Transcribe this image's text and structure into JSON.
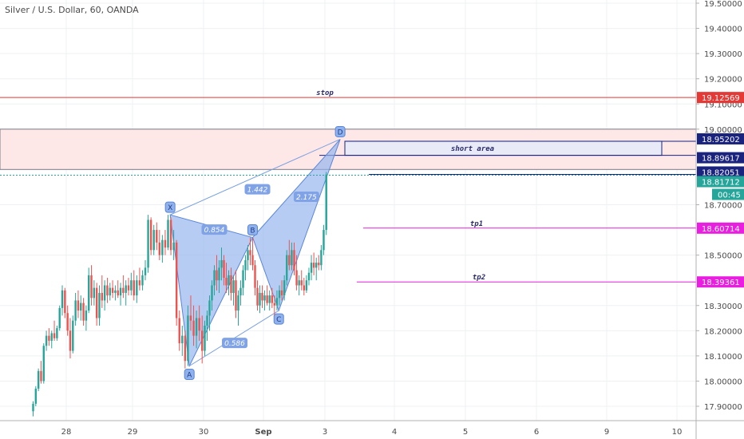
{
  "header": {
    "title": "Silver / U.S. Dollar, 60, OANDA"
  },
  "chart_data": {
    "type": "candlestick",
    "ylim": [
      17.85,
      19.5
    ],
    "y_ticks": [
      {
        "v": 19.5,
        "label": "19.50000"
      },
      {
        "v": 19.4,
        "label": "19.40000"
      },
      {
        "v": 19.3,
        "label": "19.30000"
      },
      {
        "v": 19.2,
        "label": "19.20000"
      },
      {
        "v": 19.1,
        "label": "19.10000"
      },
      {
        "v": 19.0,
        "label": "19.00000"
      },
      {
        "v": 18.7,
        "label": "18.70000"
      },
      {
        "v": 18.5,
        "label": "18.50000"
      },
      {
        "v": 18.3,
        "label": "18.30000"
      },
      {
        "v": 18.2,
        "label": "18.20000"
      },
      {
        "v": 18.1,
        "label": "18.10000"
      },
      {
        "v": 18.0,
        "label": "18.00000"
      },
      {
        "v": 17.9,
        "label": "17.90000"
      }
    ],
    "x_ticks": [
      {
        "d": 0,
        "label": "28"
      },
      {
        "d": 1,
        "label": "29"
      },
      {
        "d": 2,
        "label": "30"
      },
      {
        "d": 3,
        "label": "Sep"
      },
      {
        "d": 4,
        "label": "3"
      },
      {
        "d": 5,
        "label": "4"
      },
      {
        "d": 6,
        "label": "5"
      },
      {
        "d": 7,
        "label": "6"
      },
      {
        "d": 8,
        "label": "9"
      },
      {
        "d": 9,
        "label": "10"
      }
    ],
    "levels": [
      {
        "name": "stop",
        "value": 19.12569,
        "label": "19.12569",
        "color": "#e53935",
        "text": "stop"
      },
      {
        "name": "short-top",
        "value": 18.95202,
        "label": "18.95202",
        "color": "#1a237e"
      },
      {
        "name": "short-bottom",
        "value": 18.89617,
        "label": "18.89617",
        "color": "#1a237e"
      },
      {
        "name": "line-82051",
        "value": 18.82051,
        "label": "18.82051",
        "color": "#1a237e"
      },
      {
        "name": "current",
        "value": 18.81712,
        "label": "18.81712",
        "color": "#26a69a"
      },
      {
        "name": "tp1",
        "value": 18.60714,
        "label": "18.60714",
        "color": "#e91ee0",
        "text": "tp1"
      },
      {
        "name": "tp2",
        "value": 18.39361,
        "label": "18.39361",
        "color": "#e91ee0",
        "text": "tp2"
      }
    ],
    "countdown": "00:45",
    "short_area_label": "short area",
    "zone": {
      "top": 19.0,
      "bottom": 18.84
    },
    "pattern": {
      "points": [
        {
          "label": "X",
          "d": 1.53,
          "v": 18.66
        },
        {
          "label": "A",
          "d": 1.8,
          "v": 18.06
        },
        {
          "label": "B",
          "d": 2.82,
          "v": 18.57
        },
        {
          "label": "C",
          "d": 3.25,
          "v": 18.28
        },
        {
          "label": "D",
          "d": 4.22,
          "v": 18.96
        }
      ],
      "ratios": [
        {
          "label": "0.854",
          "d": 2.18,
          "v": 18.6
        },
        {
          "label": "0.586",
          "d": 2.52,
          "v": 18.15
        },
        {
          "label": "1.442",
          "d": 2.9,
          "v": 18.76
        },
        {
          "label": "2.175",
          "d": 3.7,
          "v": 18.73
        }
      ]
    },
    "candles": [
      {
        "d": -0.5,
        "o": 17.88,
        "h": 17.92,
        "l": 17.86,
        "c": 17.91
      },
      {
        "d": -0.46,
        "o": 17.91,
        "h": 17.98,
        "l": 17.9,
        "c": 17.97
      },
      {
        "d": -0.42,
        "o": 17.97,
        "h": 18.05,
        "l": 17.96,
        "c": 18.04
      },
      {
        "d": -0.38,
        "o": 18.04,
        "h": 18.08,
        "l": 17.99,
        "c": 18.0
      },
      {
        "d": -0.34,
        "o": 18.0,
        "h": 18.15,
        "l": 17.99,
        "c": 18.14
      },
      {
        "d": -0.3,
        "o": 18.14,
        "h": 18.2,
        "l": 18.12,
        "c": 18.18
      },
      {
        "d": -0.26,
        "o": 18.18,
        "h": 18.21,
        "l": 18.14,
        "c": 18.16
      },
      {
        "d": -0.22,
        "o": 18.16,
        "h": 18.2,
        "l": 18.13,
        "c": 18.19
      },
      {
        "d": -0.18,
        "o": 18.19,
        "h": 18.24,
        "l": 18.16,
        "c": 18.17
      },
      {
        "d": -0.14,
        "o": 18.17,
        "h": 18.22,
        "l": 18.16,
        "c": 18.21
      },
      {
        "d": -0.1,
        "o": 18.21,
        "h": 18.3,
        "l": 18.2,
        "c": 18.29
      },
      {
        "d": -0.06,
        "o": 18.29,
        "h": 18.38,
        "l": 18.26,
        "c": 18.36
      },
      {
        "d": -0.02,
        "o": 18.36,
        "h": 18.37,
        "l": 18.25,
        "c": 18.27
      },
      {
        "d": 0.02,
        "o": 18.27,
        "h": 18.3,
        "l": 18.18,
        "c": 18.2
      },
      {
        "d": 0.06,
        "o": 18.2,
        "h": 18.25,
        "l": 18.09,
        "c": 18.12
      },
      {
        "d": 0.1,
        "o": 18.12,
        "h": 18.26,
        "l": 18.11,
        "c": 18.24
      },
      {
        "d": 0.14,
        "o": 18.24,
        "h": 18.35,
        "l": 18.22,
        "c": 18.32
      },
      {
        "d": 0.18,
        "o": 18.32,
        "h": 18.36,
        "l": 18.25,
        "c": 18.28
      },
      {
        "d": 0.22,
        "o": 18.28,
        "h": 18.34,
        "l": 18.24,
        "c": 18.31
      },
      {
        "d": 0.26,
        "o": 18.31,
        "h": 18.33,
        "l": 18.22,
        "c": 18.24
      },
      {
        "d": 0.3,
        "o": 18.24,
        "h": 18.3,
        "l": 18.2,
        "c": 18.28
      },
      {
        "d": 0.34,
        "o": 18.28,
        "h": 18.45,
        "l": 18.27,
        "c": 18.42
      },
      {
        "d": 0.38,
        "o": 18.42,
        "h": 18.46,
        "l": 18.3,
        "c": 18.33
      },
      {
        "d": 0.42,
        "o": 18.33,
        "h": 18.4,
        "l": 18.3,
        "c": 18.37
      },
      {
        "d": 0.46,
        "o": 18.37,
        "h": 18.39,
        "l": 18.22,
        "c": 18.25
      },
      {
        "d": 0.5,
        "o": 18.25,
        "h": 18.38,
        "l": 18.22,
        "c": 18.35
      },
      {
        "d": 0.54,
        "o": 18.35,
        "h": 18.42,
        "l": 18.29,
        "c": 18.32
      },
      {
        "d": 0.58,
        "o": 18.32,
        "h": 18.4,
        "l": 18.28,
        "c": 18.38
      },
      {
        "d": 0.62,
        "o": 18.38,
        "h": 18.41,
        "l": 18.31,
        "c": 18.34
      },
      {
        "d": 0.66,
        "o": 18.34,
        "h": 18.39,
        "l": 18.32,
        "c": 18.37
      },
      {
        "d": 0.7,
        "o": 18.37,
        "h": 18.4,
        "l": 18.33,
        "c": 18.35
      },
      {
        "d": 0.74,
        "o": 18.35,
        "h": 18.38,
        "l": 18.32,
        "c": 18.36
      },
      {
        "d": 0.78,
        "o": 18.36,
        "h": 18.4,
        "l": 18.33,
        "c": 18.34
      },
      {
        "d": 0.82,
        "o": 18.34,
        "h": 18.39,
        "l": 18.3,
        "c": 18.37
      },
      {
        "d": 0.86,
        "o": 18.37,
        "h": 18.42,
        "l": 18.33,
        "c": 18.35
      },
      {
        "d": 0.9,
        "o": 18.35,
        "h": 18.4,
        "l": 18.3,
        "c": 18.38
      },
      {
        "d": 0.94,
        "o": 18.38,
        "h": 18.41,
        "l": 18.34,
        "c": 18.36
      },
      {
        "d": 0.98,
        "o": 18.36,
        "h": 18.43,
        "l": 18.34,
        "c": 18.4
      },
      {
        "d": 1.02,
        "o": 18.4,
        "h": 18.44,
        "l": 18.32,
        "c": 18.34
      },
      {
        "d": 1.06,
        "o": 18.34,
        "h": 18.42,
        "l": 18.31,
        "c": 18.4
      },
      {
        "d": 1.1,
        "o": 18.4,
        "h": 18.45,
        "l": 18.36,
        "c": 18.38
      },
      {
        "d": 1.14,
        "o": 18.38,
        "h": 18.44,
        "l": 18.36,
        "c": 18.42
      },
      {
        "d": 1.18,
        "o": 18.42,
        "h": 18.48,
        "l": 18.4,
        "c": 18.45
      },
      {
        "d": 1.22,
        "o": 18.45,
        "h": 18.66,
        "l": 18.43,
        "c": 18.64
      },
      {
        "d": 1.26,
        "o": 18.64,
        "h": 18.65,
        "l": 18.5,
        "c": 18.52
      },
      {
        "d": 1.3,
        "o": 18.52,
        "h": 18.62,
        "l": 18.5,
        "c": 18.6
      },
      {
        "d": 1.34,
        "o": 18.6,
        "h": 18.63,
        "l": 18.52,
        "c": 18.55
      },
      {
        "d": 1.38,
        "o": 18.55,
        "h": 18.6,
        "l": 18.48,
        "c": 18.5
      },
      {
        "d": 1.42,
        "o": 18.5,
        "h": 18.58,
        "l": 18.47,
        "c": 18.56
      },
      {
        "d": 1.46,
        "o": 18.56,
        "h": 18.6,
        "l": 18.5,
        "c": 18.53
      },
      {
        "d": 1.5,
        "o": 18.53,
        "h": 18.66,
        "l": 18.52,
        "c": 18.64
      },
      {
        "d": 1.54,
        "o": 18.64,
        "h": 18.65,
        "l": 18.5,
        "c": 18.52
      },
      {
        "d": 1.58,
        "o": 18.52,
        "h": 18.6,
        "l": 18.48,
        "c": 18.55
      },
      {
        "d": 1.62,
        "o": 18.55,
        "h": 18.56,
        "l": 18.22,
        "c": 18.25
      },
      {
        "d": 1.66,
        "o": 18.25,
        "h": 18.28,
        "l": 18.12,
        "c": 18.15
      },
      {
        "d": 1.7,
        "o": 18.15,
        "h": 18.22,
        "l": 18.1,
        "c": 18.18
      },
      {
        "d": 1.74,
        "o": 18.18,
        "h": 18.2,
        "l": 18.05,
        "c": 18.08
      },
      {
        "d": 1.78,
        "o": 18.08,
        "h": 18.3,
        "l": 18.06,
        "c": 18.26
      },
      {
        "d": 1.82,
        "o": 18.26,
        "h": 18.34,
        "l": 18.2,
        "c": 18.24
      },
      {
        "d": 1.86,
        "o": 18.24,
        "h": 18.3,
        "l": 18.14,
        "c": 18.18
      },
      {
        "d": 1.9,
        "o": 18.18,
        "h": 18.28,
        "l": 18.13,
        "c": 18.25
      },
      {
        "d": 1.94,
        "o": 18.25,
        "h": 18.3,
        "l": 18.16,
        "c": 18.2
      },
      {
        "d": 1.98,
        "o": 18.2,
        "h": 18.26,
        "l": 18.07,
        "c": 18.12
      },
      {
        "d": 2.02,
        "o": 18.12,
        "h": 18.24,
        "l": 18.1,
        "c": 18.22
      },
      {
        "d": 2.06,
        "o": 18.22,
        "h": 18.28,
        "l": 18.16,
        "c": 18.26
      },
      {
        "d": 2.1,
        "o": 18.26,
        "h": 18.34,
        "l": 18.2,
        "c": 18.32
      },
      {
        "d": 2.14,
        "o": 18.32,
        "h": 18.4,
        "l": 18.28,
        "c": 18.38
      },
      {
        "d": 2.18,
        "o": 18.38,
        "h": 18.46,
        "l": 18.34,
        "c": 18.44
      },
      {
        "d": 2.22,
        "o": 18.44,
        "h": 18.5,
        "l": 18.36,
        "c": 18.4
      },
      {
        "d": 2.26,
        "o": 18.4,
        "h": 18.48,
        "l": 18.35,
        "c": 18.45
      },
      {
        "d": 2.3,
        "o": 18.45,
        "h": 18.53,
        "l": 18.4,
        "c": 18.48
      },
      {
        "d": 2.34,
        "o": 18.48,
        "h": 18.5,
        "l": 18.38,
        "c": 18.41
      },
      {
        "d": 2.38,
        "o": 18.41,
        "h": 18.47,
        "l": 18.35,
        "c": 18.38
      },
      {
        "d": 2.42,
        "o": 18.38,
        "h": 18.44,
        "l": 18.34,
        "c": 18.42
      },
      {
        "d": 2.46,
        "o": 18.42,
        "h": 18.45,
        "l": 18.32,
        "c": 18.35
      },
      {
        "d": 2.5,
        "o": 18.35,
        "h": 18.42,
        "l": 18.3,
        "c": 18.4
      },
      {
        "d": 2.54,
        "o": 18.4,
        "h": 18.44,
        "l": 18.25,
        "c": 18.28
      },
      {
        "d": 2.58,
        "o": 18.28,
        "h": 18.36,
        "l": 18.22,
        "c": 18.34
      },
      {
        "d": 2.62,
        "o": 18.34,
        "h": 18.4,
        "l": 18.3,
        "c": 18.37
      },
      {
        "d": 2.66,
        "o": 18.37,
        "h": 18.46,
        "l": 18.34,
        "c": 18.44
      },
      {
        "d": 2.7,
        "o": 18.44,
        "h": 18.5,
        "l": 18.4,
        "c": 18.48
      },
      {
        "d": 2.74,
        "o": 18.48,
        "h": 18.54,
        "l": 18.44,
        "c": 18.52
      },
      {
        "d": 2.78,
        "o": 18.52,
        "h": 18.57,
        "l": 18.46,
        "c": 18.5
      },
      {
        "d": 2.82,
        "o": 18.5,
        "h": 18.57,
        "l": 18.44,
        "c": 18.46
      },
      {
        "d": 2.86,
        "o": 18.46,
        "h": 18.48,
        "l": 18.34,
        "c": 18.37
      },
      {
        "d": 2.9,
        "o": 18.37,
        "h": 18.4,
        "l": 18.28,
        "c": 18.3
      },
      {
        "d": 2.94,
        "o": 18.3,
        "h": 18.38,
        "l": 18.27,
        "c": 18.35
      },
      {
        "d": 2.98,
        "o": 18.35,
        "h": 18.38,
        "l": 18.29,
        "c": 18.32
      },
      {
        "d": 3.02,
        "o": 18.32,
        "h": 18.36,
        "l": 18.28,
        "c": 18.34
      },
      {
        "d": 3.06,
        "o": 18.34,
        "h": 18.38,
        "l": 18.3,
        "c": 18.31
      },
      {
        "d": 3.1,
        "o": 18.31,
        "h": 18.36,
        "l": 18.28,
        "c": 18.34
      },
      {
        "d": 3.14,
        "o": 18.34,
        "h": 18.37,
        "l": 18.29,
        "c": 18.31
      },
      {
        "d": 3.18,
        "o": 18.31,
        "h": 18.34,
        "l": 18.26,
        "c": 18.3
      },
      {
        "d": 3.22,
        "o": 18.3,
        "h": 18.36,
        "l": 18.28,
        "c": 18.33
      },
      {
        "d": 3.26,
        "o": 18.33,
        "h": 18.38,
        "l": 18.3,
        "c": 18.36
      },
      {
        "d": 3.3,
        "o": 18.36,
        "h": 18.4,
        "l": 18.32,
        "c": 18.34
      },
      {
        "d": 3.34,
        "o": 18.34,
        "h": 18.42,
        "l": 18.32,
        "c": 18.4
      },
      {
        "d": 3.38,
        "o": 18.4,
        "h": 18.52,
        "l": 18.38,
        "c": 18.5
      },
      {
        "d": 3.42,
        "o": 18.5,
        "h": 18.56,
        "l": 18.44,
        "c": 18.46
      },
      {
        "d": 3.46,
        "o": 18.46,
        "h": 18.55,
        "l": 18.44,
        "c": 18.52
      },
      {
        "d": 3.5,
        "o": 18.52,
        "h": 18.55,
        "l": 18.42,
        "c": 18.44
      },
      {
        "d": 3.54,
        "o": 18.44,
        "h": 18.5,
        "l": 18.36,
        "c": 18.38
      },
      {
        "d": 3.58,
        "o": 18.38,
        "h": 18.42,
        "l": 18.34,
        "c": 18.4
      },
      {
        "d": 3.62,
        "o": 18.4,
        "h": 18.44,
        "l": 18.36,
        "c": 18.38
      },
      {
        "d": 3.66,
        "o": 18.38,
        "h": 18.41,
        "l": 18.34,
        "c": 18.36
      },
      {
        "d": 3.7,
        "o": 18.36,
        "h": 18.42,
        "l": 18.35,
        "c": 18.4
      },
      {
        "d": 3.74,
        "o": 18.4,
        "h": 18.45,
        "l": 18.38,
        "c": 18.43
      },
      {
        "d": 3.78,
        "o": 18.43,
        "h": 18.5,
        "l": 18.4,
        "c": 18.47
      },
      {
        "d": 3.82,
        "o": 18.47,
        "h": 18.51,
        "l": 18.42,
        "c": 18.45
      },
      {
        "d": 3.86,
        "o": 18.45,
        "h": 18.49,
        "l": 18.4,
        "c": 18.47
      },
      {
        "d": 3.9,
        "o": 18.47,
        "h": 18.5,
        "l": 18.44,
        "c": 18.46
      },
      {
        "d": 3.94,
        "o": 18.46,
        "h": 18.54,
        "l": 18.44,
        "c": 18.52
      },
      {
        "d": 3.98,
        "o": 18.52,
        "h": 18.62,
        "l": 18.5,
        "c": 18.6
      },
      {
        "d": 4.02,
        "o": 18.6,
        "h": 18.83,
        "l": 18.58,
        "c": 18.82
      }
    ]
  }
}
